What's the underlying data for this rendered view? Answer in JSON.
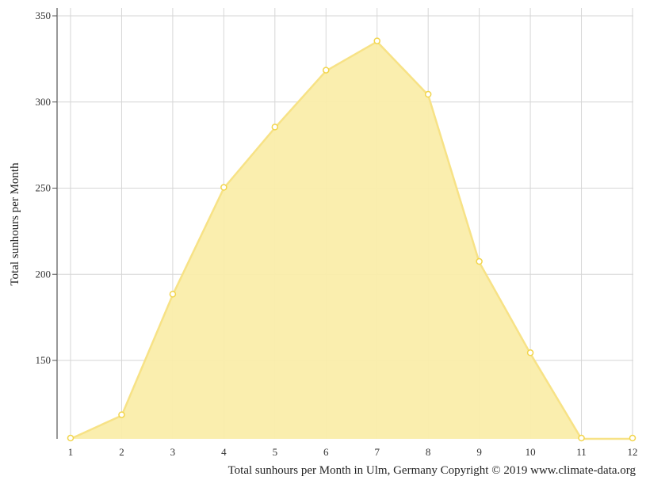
{
  "chart_data": {
    "type": "area",
    "title": "",
    "xlabel": "",
    "ylabel": "Total sunhours per Month",
    "caption": "Total sunhours per Month in Ulm, Germany Copyright © 2019 www.climate-data.org",
    "x": [
      1,
      2,
      3,
      4,
      5,
      6,
      7,
      8,
      9,
      10,
      11,
      12
    ],
    "x_tick_labels": [
      "1",
      "2",
      "3",
      "4",
      "5",
      "6",
      "7",
      "8",
      "9",
      "10",
      "11",
      "12"
    ],
    "y_ticks": [
      150,
      200,
      250,
      300,
      350
    ],
    "y_tick_labels": [
      "150",
      "200",
      "250",
      "300",
      "350"
    ],
    "ylim": [
      100,
      355
    ],
    "grid": true,
    "legend": "none",
    "series": [
      {
        "values": [
          100,
          118,
          188,
          250,
          285,
          318,
          335,
          304,
          207,
          154,
          101,
          102
        ],
        "fill_color": "#faedaa",
        "line_color": "#f7e286",
        "marker_color": "#f2d54c"
      }
    ]
  }
}
